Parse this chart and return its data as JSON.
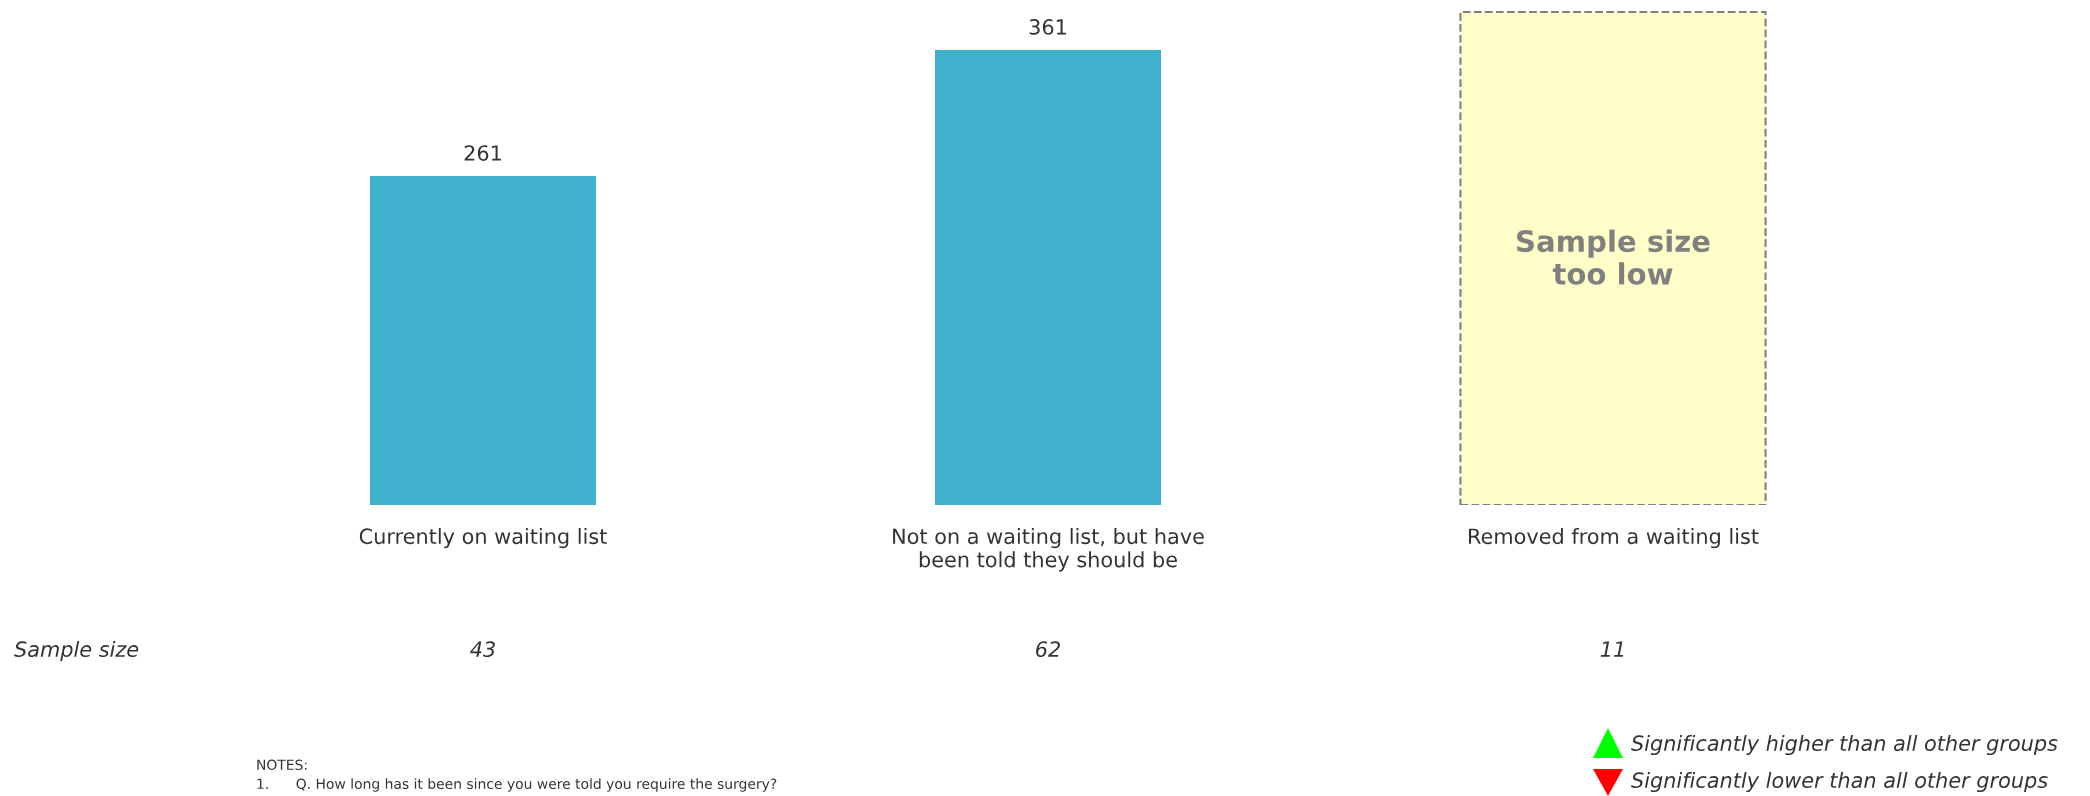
{
  "chart_data": {
    "type": "bar",
    "categories": [
      "Currently on waiting list",
      "Not on a waiting list, but have\nbeen told they should be",
      "Removed from a waiting list"
    ],
    "values": [
      261,
      361,
      null
    ],
    "color": "#3fb1cc",
    "data_labels": true,
    "bands": [
      {
        "axis": "x",
        "from": "Removed from a waiting list",
        "to": "Removed from a waiting list",
        "label": "Sample size\ntoo low",
        "color": "#fffdc8"
      }
    ],
    "annotations": [
      "Sample size",
      "43",
      "62",
      "11",
      "NOTES:",
      "1.      Q. How long has it been since you were told you require the surgery?",
      "Significantly higher than all other groups",
      "Significantly lower than all other groups"
    ]
  }
}
